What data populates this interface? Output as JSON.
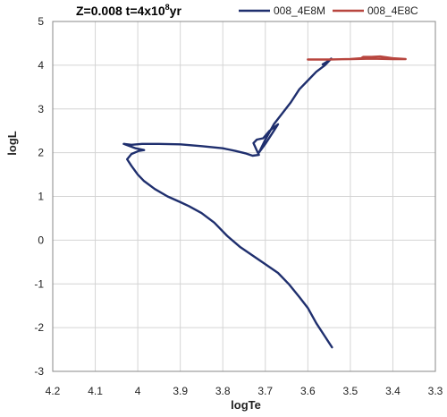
{
  "chart_data": {
    "type": "line",
    "title": "Z=0.008 t=4x10",
    "title_sup": "8",
    "title_suffix": "yr",
    "xlabel": "logTe",
    "ylabel": "logL",
    "xlim": [
      4.2,
      3.3
    ],
    "ylim": [
      -3,
      5
    ],
    "x_reversed": true,
    "x_ticks": [
      4.2,
      4.1,
      4.0,
      3.9,
      3.8,
      3.7,
      3.6,
      3.5,
      3.4,
      3.3
    ],
    "x_tick_labels": [
      "4.2",
      "4.1",
      "4",
      "3.9",
      "3.8",
      "3.7",
      "3.6",
      "3.5",
      "3.4",
      "3.3"
    ],
    "y_ticks": [
      -3,
      -2,
      -1,
      0,
      1,
      2,
      3,
      4,
      5
    ],
    "y_tick_labels": [
      "-3",
      "-2",
      "-1",
      "0",
      "1",
      "2",
      "3",
      "4",
      "5"
    ],
    "grid": true,
    "legend_position": "top",
    "series": [
      {
        "name": "008_4E8M",
        "color": "#1f2f6e",
        "points": [
          [
            3.543,
            -2.45
          ],
          [
            3.56,
            -2.2
          ],
          [
            3.58,
            -1.9
          ],
          [
            3.6,
            -1.55
          ],
          [
            3.62,
            -1.3
          ],
          [
            3.645,
            -1.0
          ],
          [
            3.67,
            -0.75
          ],
          [
            3.7,
            -0.55
          ],
          [
            3.73,
            -0.35
          ],
          [
            3.76,
            -0.15
          ],
          [
            3.79,
            0.1
          ],
          [
            3.82,
            0.4
          ],
          [
            3.85,
            0.62
          ],
          [
            3.88,
            0.78
          ],
          [
            3.9,
            0.87
          ],
          [
            3.93,
            1.0
          ],
          [
            3.96,
            1.17
          ],
          [
            3.985,
            1.35
          ],
          [
            4.0,
            1.5
          ],
          [
            4.015,
            1.7
          ],
          [
            4.025,
            1.85
          ],
          [
            4.015,
            1.97
          ],
          [
            3.998,
            2.04
          ],
          [
            3.985,
            2.06
          ],
          [
            4.005,
            2.1
          ],
          [
            4.033,
            2.2
          ],
          [
            4.015,
            2.18
          ],
          [
            3.99,
            2.2
          ],
          [
            3.95,
            2.2
          ],
          [
            3.9,
            2.19
          ],
          [
            3.85,
            2.15
          ],
          [
            3.8,
            2.1
          ],
          [
            3.77,
            2.04
          ],
          [
            3.745,
            1.98
          ],
          [
            3.73,
            1.93
          ],
          [
            3.715,
            1.95
          ],
          [
            3.72,
            2.05
          ],
          [
            3.728,
            2.22
          ],
          [
            3.72,
            2.3
          ],
          [
            3.705,
            2.33
          ],
          [
            3.69,
            2.5
          ],
          [
            3.67,
            2.65
          ],
          [
            3.68,
            2.5
          ],
          [
            3.7,
            2.2
          ],
          [
            3.715,
            2.0
          ],
          [
            3.7,
            2.3
          ],
          [
            3.68,
            2.65
          ],
          [
            3.66,
            2.9
          ],
          [
            3.64,
            3.15
          ],
          [
            3.62,
            3.45
          ],
          [
            3.6,
            3.65
          ],
          [
            3.58,
            3.85
          ],
          [
            3.56,
            4.0
          ],
          [
            3.545,
            4.15
          ],
          [
            3.555,
            4.08
          ],
          [
            3.565,
            4.02
          ]
        ]
      },
      {
        "name": "008_4E8C",
        "color": "#b8463f",
        "points": [
          [
            3.6,
            4.13
          ],
          [
            3.55,
            4.13
          ],
          [
            3.5,
            4.14
          ],
          [
            3.475,
            4.16
          ],
          [
            3.47,
            4.19
          ],
          [
            3.45,
            4.19
          ],
          [
            3.43,
            4.2
          ],
          [
            3.4,
            4.16
          ],
          [
            3.37,
            4.14
          ],
          [
            3.4,
            4.14
          ],
          [
            3.45,
            4.15
          ],
          [
            3.5,
            4.14
          ]
        ]
      }
    ]
  }
}
